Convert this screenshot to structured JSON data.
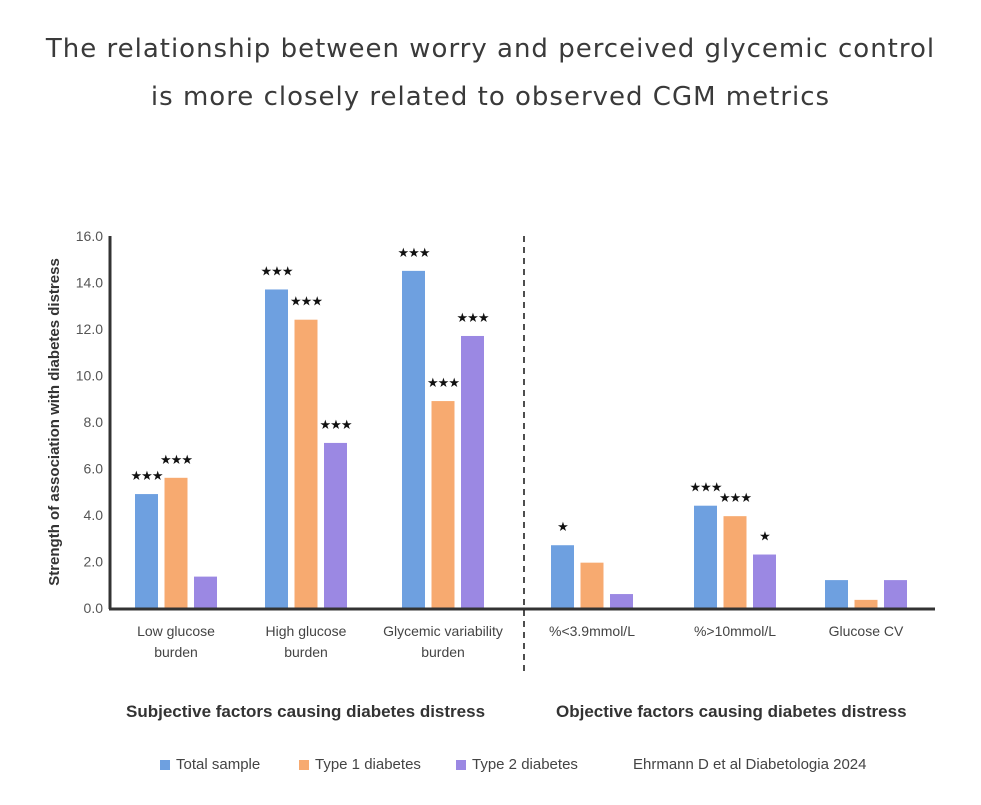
{
  "title_line1": "The relationship between worry and perceived glycemic control",
  "title_line2": "is more closely related to observed CGM metrics",
  "chart_data": {
    "type": "bar",
    "ylabel": "Strength of association with diabetes distress",
    "ylim": [
      0,
      16
    ],
    "yticks": [
      "0.0",
      "2.0",
      "4.0",
      "6.0",
      "8.0",
      "10.0",
      "12.0",
      "14.0",
      "16.0"
    ],
    "categories": [
      [
        "Low glucose",
        "burden"
      ],
      [
        "High glucose",
        "burden"
      ],
      [
        "Glycemic variability",
        "burden"
      ],
      [
        "%<3.9mmol/L"
      ],
      [
        "%>10mmol/L"
      ],
      [
        "Glucose CV"
      ]
    ],
    "series": [
      {
        "name": "Total sample",
        "color": "#6ea0e0",
        "values": [
          4.9,
          13.7,
          14.5,
          2.7,
          4.4,
          1.2
        ],
        "significance": [
          "***",
          "***",
          "***",
          "*",
          "***",
          ""
        ]
      },
      {
        "name": "Type 1 diabetes",
        "color": "#f7aa70",
        "values": [
          5.6,
          12.4,
          8.9,
          1.95,
          3.95,
          0.35
        ],
        "significance": [
          "***",
          "***",
          "***",
          "",
          "***",
          ""
        ]
      },
      {
        "name": "Type 2 diabetes",
        "color": "#9b88e3",
        "values": [
          1.35,
          7.1,
          11.7,
          0.6,
          2.3,
          1.2
        ],
        "significance": [
          "",
          "***",
          "***",
          "",
          "*",
          ""
        ]
      }
    ],
    "groups": [
      "Subjective factors causing diabetes distress",
      "Objective factors causing diabetes distress"
    ],
    "legend_position": "bottom"
  },
  "source": "Ehrmann D et al Diabetologia 2024"
}
